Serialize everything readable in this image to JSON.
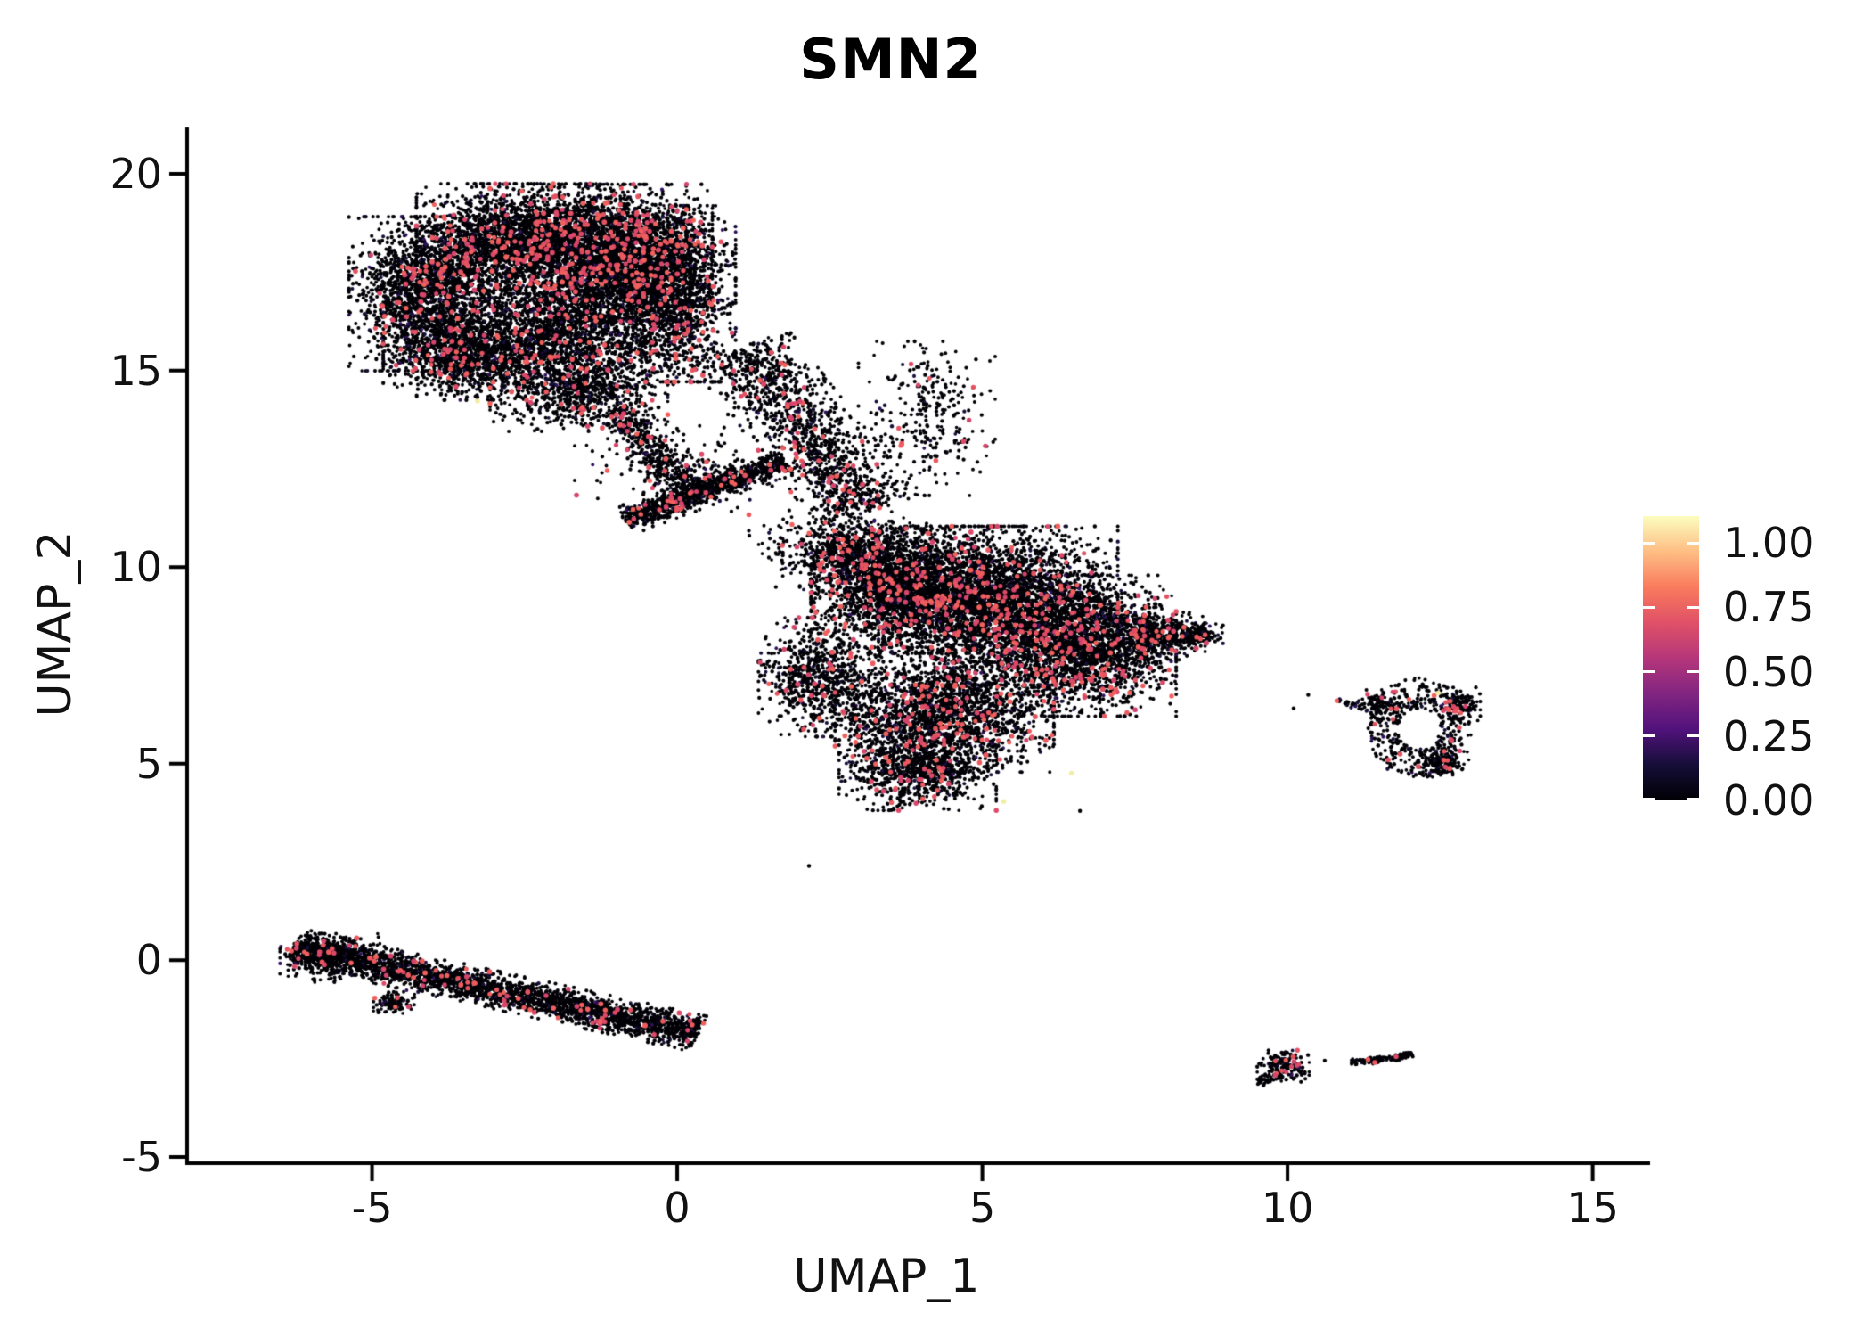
{
  "title": "SMN2",
  "axes": {
    "x": {
      "label": "UMAP_1",
      "tick_labels": [
        "-5",
        "0",
        "5",
        "10",
        "15"
      ],
      "tick_values": [
        -5,
        0,
        5,
        10,
        15
      ],
      "range": [
        -8.03,
        15.94
      ]
    },
    "y": {
      "label": "UMAP_2",
      "tick_labels": [
        "-5",
        "0",
        "5",
        "10",
        "15",
        "20"
      ],
      "tick_values": [
        -5,
        0,
        5,
        10,
        15,
        20
      ],
      "range": [
        -5.16,
        21.18
      ]
    }
  },
  "legend": {
    "tick_labels": [
      "1.00",
      "0.75",
      "0.50",
      "0.25",
      "0.00"
    ],
    "tick_values": [
      1.0,
      0.75,
      0.5,
      0.25,
      0.0
    ],
    "scale_max": 1.104,
    "gradient_stops": [
      [
        0,
        "#000004"
      ],
      [
        0.125,
        "#150e38"
      ],
      [
        0.25,
        "#51127c"
      ],
      [
        0.375,
        "#822581"
      ],
      [
        0.5,
        "#b5367a"
      ],
      [
        0.625,
        "#e05167"
      ],
      [
        0.75,
        "#f97b5d"
      ],
      [
        0.875,
        "#febe84"
      ],
      [
        1,
        "#fcfdbf"
      ]
    ]
  },
  "chart_data": {
    "type": "scatter",
    "title": "SMN2",
    "xlabel": "UMAP_1",
    "ylabel": "UMAP_2",
    "xlim": [
      -8.03,
      15.94
    ],
    "ylim": [
      -5.16,
      21.18
    ],
    "grid": false,
    "legend_position": "right",
    "rng_seed": 1337,
    "colors": {
      "axis": "#000000",
      "black_shades": [
        "#010005",
        "#05030a",
        "#160e3a",
        "#30115f"
      ],
      "black_weights": [
        0.65,
        0.285,
        0.05,
        0.015
      ],
      "pink_shades": [
        "#d6456c",
        "#de4968",
        "#e45361",
        "#ec5a5f",
        "#f1605d"
      ],
      "yellow": "#f3eda3"
    },
    "point_radius": {
      "black": 1.8,
      "pink": 2.5,
      "yellow": 2.7
    },
    "clusters": [
      {
        "name": "top-left-lobe",
        "kind": "gauss",
        "cx": -4.09,
        "cy": 16.95,
        "rx": 1.15,
        "ry": 1.75,
        "n": 2000,
        "pink": 0.05
      },
      {
        "name": "top-upper-mid",
        "kind": "gauss",
        "cx": -2.48,
        "cy": 18.35,
        "rx": 1.6,
        "ry": 1.25,
        "n": 2600,
        "pink": 0.055
      },
      {
        "name": "top-upper-right",
        "kind": "gauss",
        "cx": -0.88,
        "cy": 18.0,
        "rx": 1.3,
        "ry": 1.55,
        "n": 2400,
        "pink": 0.055
      },
      {
        "name": "top-right-edge",
        "kind": "gauss",
        "cx": -0.05,
        "cy": 16.95,
        "rx": 0.9,
        "ry": 2.0,
        "n": 1500,
        "pink": 0.05
      },
      {
        "name": "top-core",
        "kind": "gauss",
        "cx": -1.75,
        "cy": 16.3,
        "rx": 1.75,
        "ry": 1.55,
        "n": 2400,
        "pink": 0.05
      },
      {
        "name": "top-lower-left",
        "kind": "gauss",
        "cx": -3.36,
        "cy": 15.37,
        "rx": 1.3,
        "ry": 1.0,
        "n": 1200,
        "pink": 0.045
      },
      {
        "name": "top-bottom-fringe",
        "kind": "gauss",
        "cx": -1.61,
        "cy": 14.46,
        "rx": 1.3,
        "ry": 0.9,
        "n": 800,
        "pink": 0.04
      },
      {
        "name": "top-tail-down",
        "kind": "line",
        "x1": -1.02,
        "y1": 14.01,
        "x2": 0.29,
        "y2": 11.86,
        "sd": 0.35,
        "n": 450,
        "pink": 0.04
      },
      {
        "name": "bridge-right-band",
        "kind": "line",
        "x1": 1.02,
        "y1": 15.6,
        "x2": 3.14,
        "y2": 11.4,
        "sd": 0.7,
        "n": 1300,
        "pink": 0.05
      },
      {
        "name": "bridge-sparse-cloud",
        "kind": "gauss",
        "cx": 4.09,
        "cy": 13.78,
        "rx": 1.0,
        "ry": 1.75,
        "n": 300,
        "pink": 0.04
      },
      {
        "name": "diagonal-strip",
        "kind": "line",
        "x1": -0.85,
        "y1": 11.18,
        "x2": 1.78,
        "y2": 12.7,
        "sd": 0.28,
        "n": 950,
        "pink": 0.05
      },
      {
        "name": "strip-halo",
        "kind": "gauss",
        "cx": 0.0,
        "cy": 12.65,
        "rx": 1.5,
        "ry": 1.1,
        "n": 180,
        "pink": 0.03
      },
      {
        "name": "pre-central-scatter",
        "kind": "gauss",
        "cx": 2.63,
        "cy": 10.61,
        "rx": 1.3,
        "ry": 1.0,
        "n": 280,
        "pink": 0.04
      },
      {
        "name": "central-upper-left",
        "kind": "gauss",
        "cx": 3.65,
        "cy": 9.47,
        "rx": 1.3,
        "ry": 1.35,
        "n": 2400,
        "pink": 0.06
      },
      {
        "name": "central-core",
        "kind": "gauss",
        "cx": 5.26,
        "cy": 9.02,
        "rx": 1.75,
        "ry": 1.8,
        "n": 3400,
        "pink": 0.065
      },
      {
        "name": "central-right",
        "kind": "gauss",
        "cx": 6.72,
        "cy": 8.0,
        "rx": 1.3,
        "ry": 1.6,
        "n": 2200,
        "pink": 0.06
      },
      {
        "name": "central-tip",
        "kind": "gauss",
        "cx": 7.81,
        "cy": 8.23,
        "rx": 0.75,
        "ry": 0.55,
        "n": 450,
        "pink": 0.05
      },
      {
        "name": "central-tip-end",
        "kind": "gauss",
        "cx": 8.54,
        "cy": 8.28,
        "rx": 0.36,
        "ry": 0.26,
        "n": 120,
        "pink": 0.05
      },
      {
        "name": "central-lower",
        "kind": "gauss",
        "cx": 4.38,
        "cy": 6.3,
        "rx": 1.6,
        "ry": 1.35,
        "n": 2100,
        "pink": 0.06
      },
      {
        "name": "central-bottom",
        "kind": "gauss",
        "cx": 3.94,
        "cy": 4.82,
        "rx": 1.15,
        "ry": 0.9,
        "n": 850,
        "pink": 0.05
      },
      {
        "name": "central-left-low",
        "kind": "gauss",
        "cx": 2.34,
        "cy": 7.2,
        "rx": 0.9,
        "ry": 1.35,
        "n": 800,
        "pink": 0.05
      },
      {
        "name": "central-left-wing",
        "kind": "gauss",
        "cx": 2.85,
        "cy": 10.27,
        "rx": 1.0,
        "ry": 0.8,
        "n": 500,
        "pink": 0.05
      },
      {
        "name": "cigar-band",
        "kind": "line",
        "x1": -6.28,
        "y1": 0.35,
        "x2": 0.35,
        "y2": -1.87,
        "sd": 0.36,
        "n": 2900,
        "pink": 0.032
      },
      {
        "name": "cigar-left-cap",
        "kind": "gauss",
        "cx": -5.69,
        "cy": 0.06,
        "rx": 0.73,
        "ry": 0.55,
        "n": 350,
        "pink": 0.03
      },
      {
        "name": "cigar-bump",
        "kind": "gauss",
        "cx": -4.64,
        "cy": -1.08,
        "rx": 0.3,
        "ry": 0.25,
        "n": 120,
        "pink": 0.03
      },
      {
        "name": "island-ring",
        "kind": "ring",
        "cx": 12.16,
        "cy": 5.89,
        "rix": 0.34,
        "riy": 0.52,
        "rox": 0.85,
        "roy": 1.3,
        "n": 430,
        "pink": 0.05
      },
      {
        "name": "island-left-arm",
        "kind": "gauss",
        "cx": 11.46,
        "cy": 6.52,
        "rx": 0.26,
        "ry": 0.32,
        "n": 80,
        "pink": 0.04
      },
      {
        "name": "island-right-knob",
        "kind": "gauss",
        "cx": 12.8,
        "cy": 6.48,
        "rx": 0.32,
        "ry": 0.41,
        "n": 130,
        "pink": 0.05
      },
      {
        "name": "island-bottom-knob",
        "kind": "gauss",
        "cx": 12.58,
        "cy": 5.03,
        "rx": 0.36,
        "ry": 0.34,
        "n": 130,
        "pink": 0.05
      },
      {
        "name": "island-outlier-trail",
        "kind": "line",
        "x1": 10.8,
        "y1": 6.61,
        "x2": 11.27,
        "y2": 6.39,
        "sd": 0.09,
        "n": 22,
        "pink": 0.05
      },
      {
        "name": "mini-blob-left",
        "kind": "gauss",
        "cx": 9.93,
        "cy": -2.69,
        "rx": 0.38,
        "ry": 0.36,
        "n": 170,
        "pink": 0.06
      },
      {
        "name": "mini-blob-left-bump",
        "kind": "gauss",
        "cx": 9.64,
        "cy": -3.05,
        "rx": 0.15,
        "ry": 0.12,
        "n": 25,
        "pink": 0.0
      },
      {
        "name": "mini-blob-right",
        "kind": "line",
        "x1": 11.04,
        "y1": -2.6,
        "x2": 11.94,
        "y2": -2.45,
        "sd": 0.07,
        "n": 110,
        "pink": 0.03
      },
      {
        "name": "mini-blob-right-knob",
        "kind": "gauss",
        "cx": 11.97,
        "cy": -2.4,
        "rx": 0.1,
        "ry": 0.08,
        "n": 20,
        "pink": 0.0
      }
    ],
    "black_outliers": [
      [
        2.16,
        2.4
      ],
      [
        4.99,
        3.92
      ],
      [
        6.6,
        3.8
      ],
      [
        10.34,
        6.75
      ],
      [
        10.1,
        6.41
      ],
      [
        10.61,
        -2.55
      ]
    ],
    "yellow_points": [
      [
        -3.27,
        14.22
      ],
      [
        6.46,
        4.76
      ],
      [
        5.35,
        4.04
      ],
      [
        12.47,
        6.8
      ]
    ]
  }
}
